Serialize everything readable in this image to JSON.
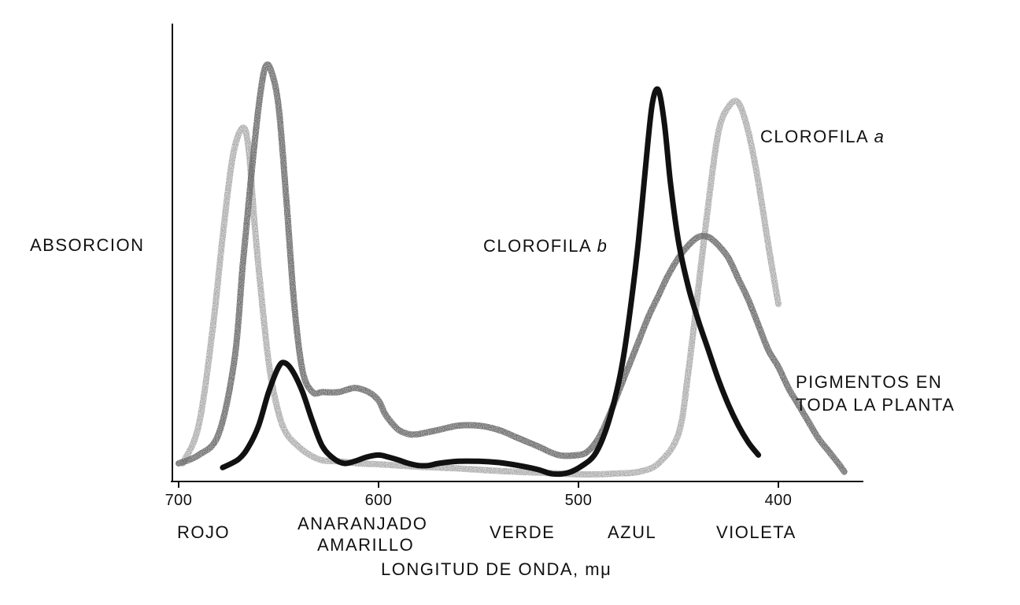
{
  "chart_data": {
    "type": "line",
    "ylabel": "ABSORCION",
    "xlabel": "LONGITUD DE ONDA, mμ",
    "xlim": [
      700,
      365
    ],
    "x_reversed": true,
    "ylim": [
      0,
      1
    ],
    "grid": false,
    "y_ticks_shown": false,
    "x_ticks": [
      700,
      600,
      500,
      400
    ],
    "x_tick_labels": [
      "700",
      "600",
      "500",
      "400"
    ],
    "color_bands": [
      {
        "label": "ROJO",
        "x": 683
      },
      {
        "label": "ANARANJADO",
        "line2": "AMARILLO",
        "x": 612
      },
      {
        "label": "VERDE",
        "x": 548
      },
      {
        "label": "AZUL",
        "x": 475
      },
      {
        "label": "VIOLETA",
        "x": 411
      }
    ],
    "series": [
      {
        "name": "CLOROFILA a",
        "name_parts": [
          "CLOROFILA ",
          "a"
        ],
        "style": "light-dotted",
        "color": "#b0b0b0",
        "x": [
          698,
          690,
          683,
          678,
          673,
          668,
          665,
          662,
          658,
          654,
          648,
          640,
          630,
          620,
          610,
          600,
          590,
          580,
          570,
          560,
          550,
          540,
          530,
          520,
          510,
          500,
          490,
          480,
          470,
          460,
          450,
          445,
          440,
          435,
          430,
          425,
          420,
          415,
          410,
          405,
          400
        ],
        "y": [
          0.03,
          0.12,
          0.35,
          0.57,
          0.76,
          0.83,
          0.78,
          0.6,
          0.4,
          0.24,
          0.12,
          0.07,
          0.04,
          0.035,
          0.03,
          0.028,
          0.025,
          0.022,
          0.02,
          0.018,
          0.015,
          0.012,
          0.01,
          0.008,
          0.006,
          0.004,
          0.004,
          0.006,
          0.01,
          0.03,
          0.1,
          0.25,
          0.45,
          0.65,
          0.82,
          0.88,
          0.89,
          0.82,
          0.7,
          0.55,
          0.41
        ]
      },
      {
        "name": "CLOROFILA b",
        "name_parts": [
          "CLOROFILA ",
          "b"
        ],
        "style": "bold",
        "color": "#111111",
        "x": [
          678,
          670,
          665,
          660,
          655,
          650,
          647,
          643,
          638,
          633,
          628,
          622,
          617,
          612,
          606,
          600,
          595,
          590,
          585,
          580,
          575,
          570,
          560,
          550,
          540,
          530,
          520,
          513,
          505,
          498,
          492,
          487,
          482,
          478,
          474,
          470,
          466,
          463,
          460,
          457,
          454,
          450,
          445,
          440,
          435,
          430,
          425,
          420,
          415,
          410
        ],
        "y": [
          0.02,
          0.04,
          0.07,
          0.12,
          0.2,
          0.26,
          0.27,
          0.25,
          0.2,
          0.13,
          0.07,
          0.04,
          0.03,
          0.035,
          0.045,
          0.05,
          0.045,
          0.038,
          0.03,
          0.025,
          0.025,
          0.03,
          0.035,
          0.035,
          0.032,
          0.025,
          0.015,
          0.005,
          0.008,
          0.025,
          0.05,
          0.1,
          0.18,
          0.27,
          0.4,
          0.56,
          0.76,
          0.89,
          0.92,
          0.84,
          0.7,
          0.56,
          0.45,
          0.37,
          0.3,
          0.23,
          0.17,
          0.12,
          0.08,
          0.05
        ]
      },
      {
        "name": "PIGMENTOS EN TODA LA PLANTA",
        "name_lines": [
          "PIGMENTOS EN",
          "TODA LA PLANTA"
        ],
        "style": "grey-dotted",
        "color": "#808080",
        "x": [
          700,
          690,
          680,
          672,
          668,
          664,
          660,
          657,
          654,
          650,
          646,
          642,
          638,
          633,
          628,
          620,
          612,
          605,
          600,
          597,
          594,
          590,
          585,
          580,
          570,
          560,
          550,
          540,
          530,
          520,
          510,
          500,
          495,
          490,
          485,
          480,
          475,
          470,
          465,
          460,
          455,
          450,
          445,
          440,
          435,
          430,
          425,
          420,
          415,
          410,
          405,
          400,
          395,
          390,
          385,
          380,
          375,
          370,
          367
        ],
        "y": [
          0.03,
          0.05,
          0.1,
          0.28,
          0.5,
          0.7,
          0.88,
          0.97,
          0.97,
          0.88,
          0.65,
          0.4,
          0.25,
          0.2,
          0.2,
          0.2,
          0.21,
          0.2,
          0.18,
          0.15,
          0.13,
          0.11,
          0.1,
          0.1,
          0.11,
          0.12,
          0.12,
          0.11,
          0.09,
          0.07,
          0.05,
          0.05,
          0.06,
          0.09,
          0.14,
          0.2,
          0.26,
          0.32,
          0.38,
          0.43,
          0.48,
          0.52,
          0.55,
          0.57,
          0.57,
          0.55,
          0.52,
          0.47,
          0.42,
          0.36,
          0.3,
          0.26,
          0.21,
          0.17,
          0.13,
          0.09,
          0.06,
          0.03,
          0.01
        ]
      }
    ]
  }
}
